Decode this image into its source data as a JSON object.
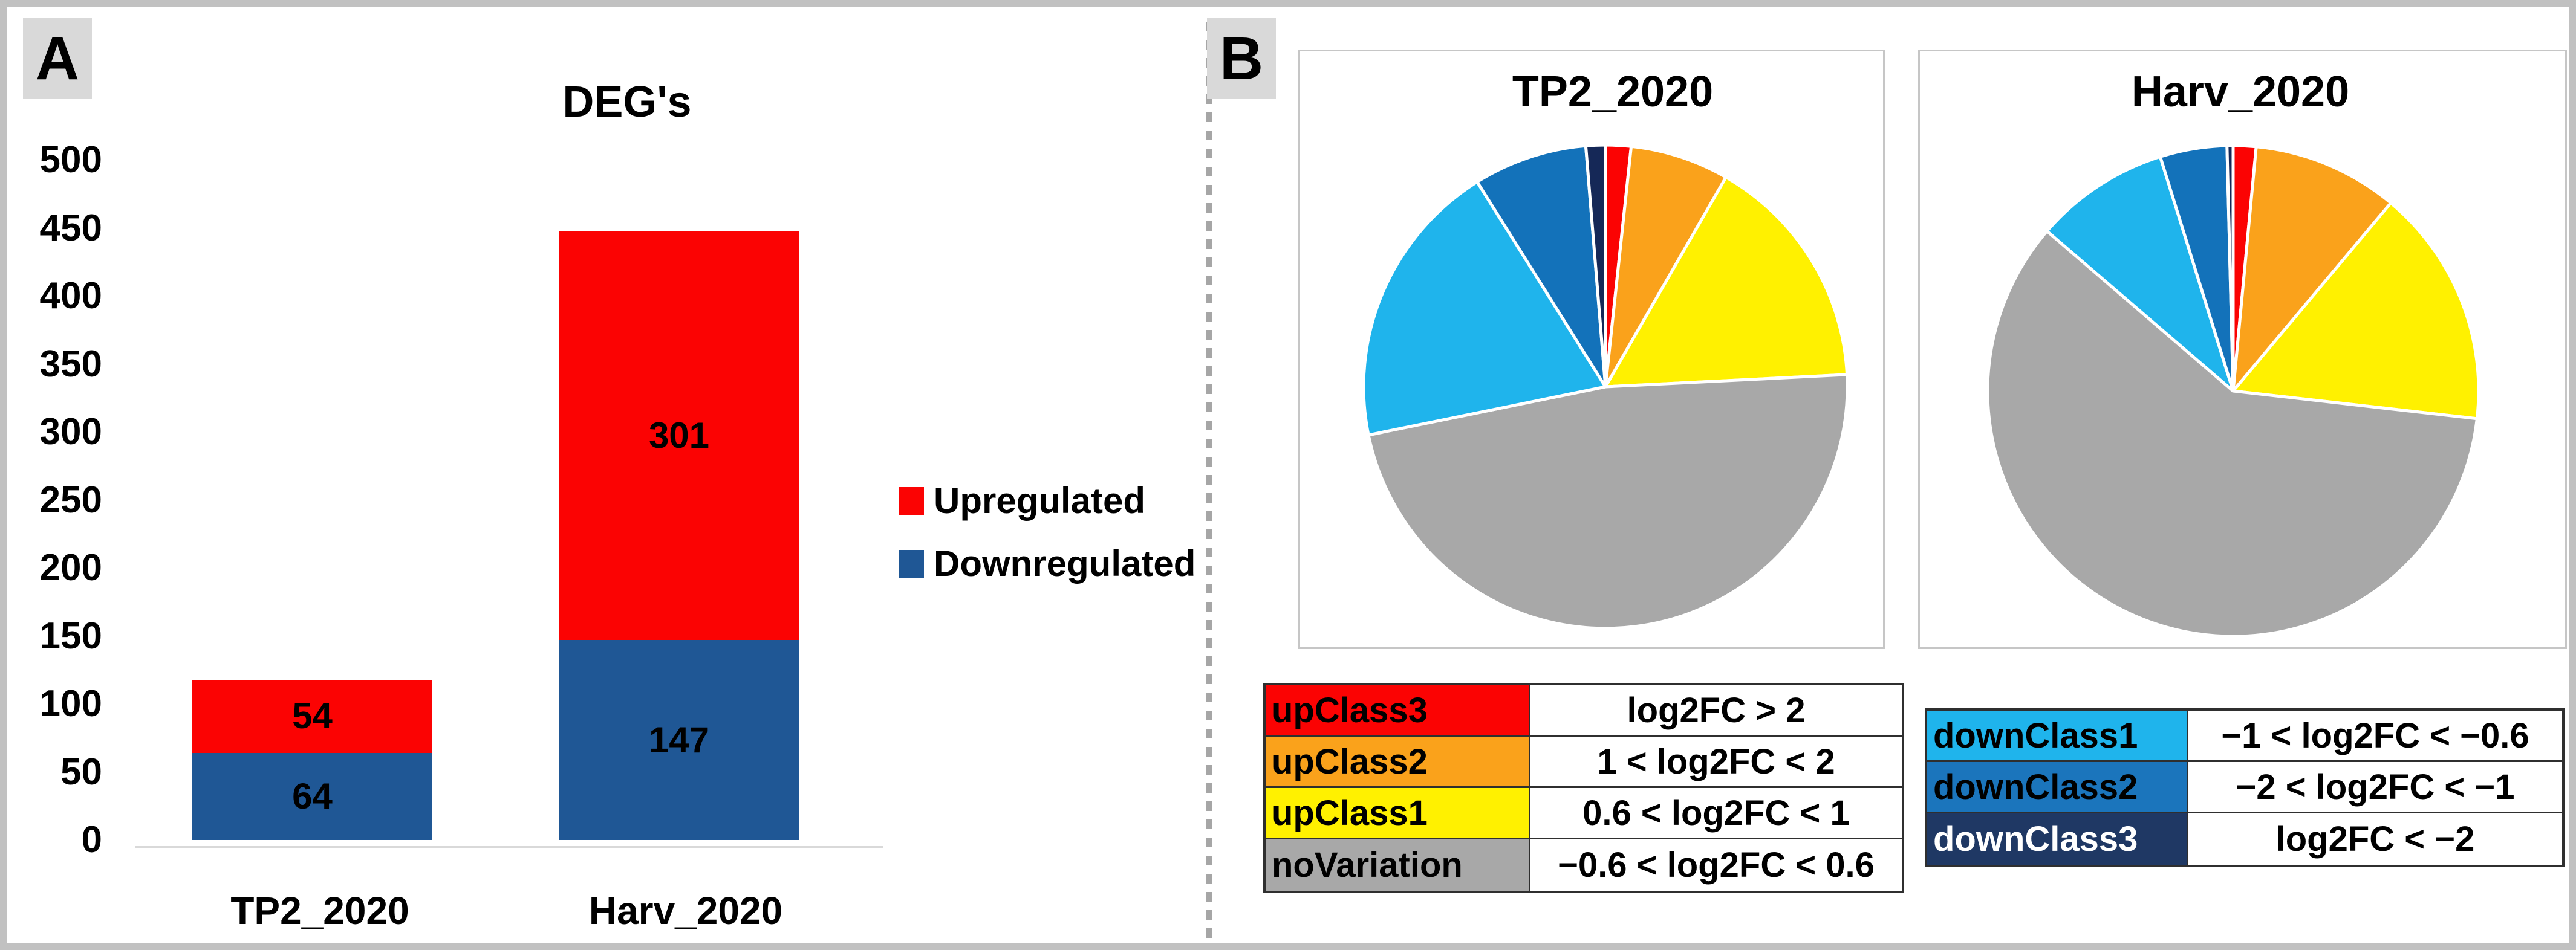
{
  "figure": {
    "panelA": {
      "label": "A",
      "y_ticks": [
        500,
        450,
        400,
        350,
        300,
        250,
        200,
        150,
        100,
        50,
        0
      ],
      "legend": [
        {
          "label": "Upregulated",
          "color": "#fb0303"
        },
        {
          "label": "Downregulated",
          "color": "#1f5795"
        }
      ]
    },
    "panelB": {
      "label": "B",
      "legend_tables": {
        "up": [
          {
            "label": "upClass3",
            "color": "#fb0303",
            "text_color": "#000000",
            "range": "log2FC > 2"
          },
          {
            "label": "upClass2",
            "color": "#faa21b",
            "text_color": "#000000",
            "range": "1 < log2FC < 2"
          },
          {
            "label": "upClass1",
            "color": "#fff100",
            "text_color": "#000000",
            "range": "0.6 < log2FC < 1"
          },
          {
            "label": "noVariation",
            "color": "#a8a8a8",
            "text_color": "#000000",
            "range": "−0.6 < log2FC < 0.6"
          }
        ],
        "down": [
          {
            "label": "downClass1",
            "color": "#1fb4ec",
            "text_color": "#000000",
            "range": "−1 < log2FC < −0.6"
          },
          {
            "label": "downClass2",
            "color": "#1b75bc",
            "text_color": "#000000",
            "range": "−2 < log2FC < −1"
          },
          {
            "label": "downClass3",
            "color": "#1f3864",
            "text_color": "#ffffff",
            "range": "log2FC < −2"
          }
        ]
      }
    }
  },
  "chart_data": [
    {
      "type": "bar",
      "stacked": true,
      "title": "DEG's",
      "categories": [
        "TP2_2020",
        "Harv_2020"
      ],
      "series": [
        {
          "name": "Downregulated",
          "color": "#1f5795",
          "values": [
            64,
            147
          ]
        },
        {
          "name": "Upregulated",
          "color": "#fb0303",
          "values": [
            54,
            301
          ]
        }
      ],
      "xlabel": "",
      "ylabel": "",
      "ylim": [
        0,
        500
      ],
      "ytick_step": 50,
      "grid": false,
      "legend_position": "right",
      "bar_value_labels": true
    },
    {
      "type": "pie",
      "title": "TP2_2020",
      "labels": [
        "upClass3",
        "upClass2",
        "upClass1",
        "noVariation",
        "downClass1",
        "downClass2",
        "downClass3"
      ],
      "colors": [
        "#fb0303",
        "#faa21b",
        "#fff100",
        "#a8a8a8",
        "#1fb4ec",
        "#1372ba",
        "#152857"
      ],
      "values_percent": [
        1.7,
        6.6,
        15.9,
        47.6,
        19.3,
        7.6,
        1.3
      ],
      "start_angle_deg": 0,
      "direction": "clockwise",
      "slice_separator_color": "#ffffff"
    },
    {
      "type": "pie",
      "title": "Harv_2020",
      "labels": [
        "upClass3",
        "upClass2",
        "upClass1",
        "noVariation",
        "downClass1",
        "downClass2",
        "downClass3"
      ],
      "colors": [
        "#fb0303",
        "#faa21b",
        "#fff100",
        "#a8a8a8",
        "#1fb4ec",
        "#1372ba",
        "#152857"
      ],
      "values_percent": [
        1.5,
        9.6,
        15.7,
        59.5,
        8.9,
        4.4,
        0.4
      ],
      "start_angle_deg": 0,
      "direction": "clockwise",
      "slice_separator_color": "#ffffff"
    }
  ]
}
